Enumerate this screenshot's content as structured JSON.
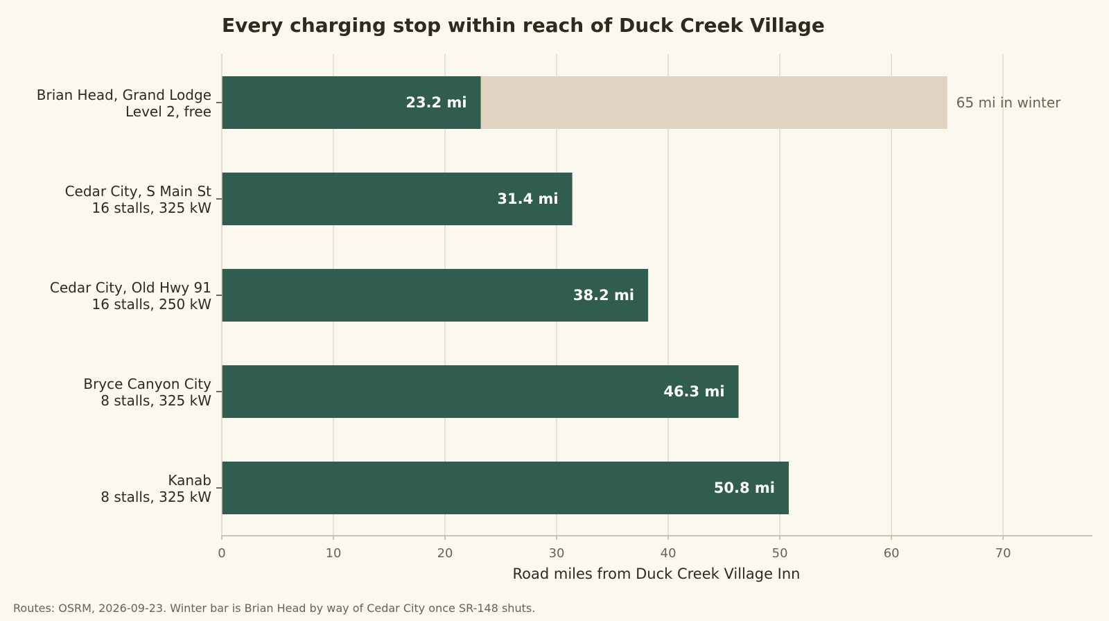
{
  "chart_data": {
    "type": "bar",
    "orientation": "horizontal",
    "title": "Every charging stop within reach of Duck Creek Village",
    "xlabel": "Road miles from Duck Creek Village Inn",
    "ylabel": "",
    "xlim": [
      0,
      78
    ],
    "xticks": [
      0,
      10,
      20,
      30,
      40,
      50,
      60,
      70
    ],
    "grid": "vertical",
    "categories": [
      {
        "line1": "Brian Head, Grand Lodge",
        "line2": "Level 2, free"
      },
      {
        "line1": "Cedar City, S Main St",
        "line2": "16 stalls, 325 kW"
      },
      {
        "line1": "Cedar City, Old Hwy 91",
        "line2": "16 stalls, 250 kW"
      },
      {
        "line1": "Bryce Canyon City",
        "line2": "8 stalls, 325 kW"
      },
      {
        "line1": "Kanab",
        "line2": "8 stalls, 325 kW"
      }
    ],
    "series": [
      {
        "values": [
          23.2,
          31.4,
          38.2,
          46.3,
          50.8
        ],
        "labels": [
          "23.2 mi",
          "31.4 mi",
          "38.2 mi",
          "46.3 mi",
          "50.8 mi"
        ],
        "color": "#315c50"
      }
    ],
    "winter": {
      "category_index": 0,
      "value": 65,
      "label": "65 mi in winter",
      "color": "#e1d3c1"
    },
    "footnote": "Routes: OSRM, 2026-09-23. Winter bar is Brian Head by way of Cedar City once SR-148 shuts."
  }
}
